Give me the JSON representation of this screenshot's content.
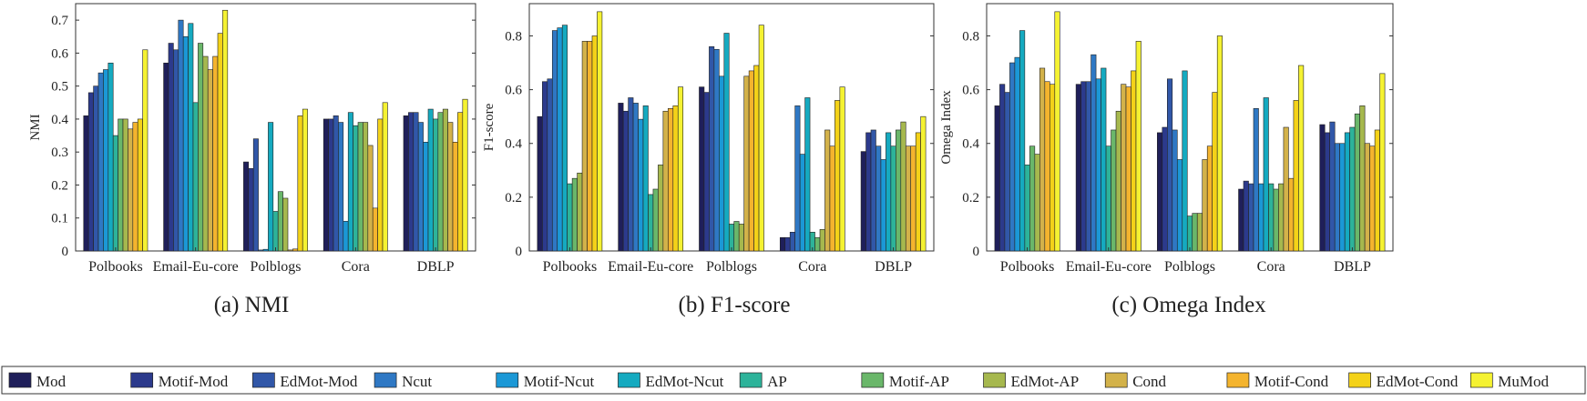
{
  "series": [
    {
      "name": "Mod",
      "color": "#1f1f5a"
    },
    {
      "name": "Motif-Mod",
      "color": "#2c3a8c"
    },
    {
      "name": "EdMot-Mod",
      "color": "#3157a8"
    },
    {
      "name": "Ncut",
      "color": "#2f78c4"
    },
    {
      "name": "Motif-Ncut",
      "color": "#1b98d6"
    },
    {
      "name": "EdMot-Ncut",
      "color": "#15aac0"
    },
    {
      "name": "AP",
      "color": "#2db39a"
    },
    {
      "name": "Motif-AP",
      "color": "#6ab76a"
    },
    {
      "name": "EdMot-AP",
      "color": "#a6b84e"
    },
    {
      "name": "Cond",
      "color": "#d3b24a"
    },
    {
      "name": "Motif-Cond",
      "color": "#f4b42e"
    },
    {
      "name": "EdMot-Cond",
      "color": "#f4d218"
    },
    {
      "name": "MuMod",
      "color": "#f5f232"
    }
  ],
  "chart_data": [
    {
      "type": "bar",
      "title": "(a) NMI",
      "ylabel": "NMI",
      "xlabel": "",
      "ylim": [
        0,
        0.75
      ],
      "yticks": [
        0,
        0.1,
        0.2,
        0.3,
        0.4,
        0.5,
        0.6,
        0.7
      ],
      "ytick_labels": [
        "0",
        "0.1",
        "0.2",
        "0.3",
        "0.4",
        "0.5",
        "0.6",
        "0.7"
      ],
      "categories": [
        "Polbooks",
        "Email-Eu-core",
        "Polblogs",
        "Cora",
        "DBLP"
      ],
      "values": [
        [
          0.41,
          0.48,
          0.5,
          0.54,
          0.55,
          0.57,
          0.35,
          0.4,
          0.4,
          0.37,
          0.39,
          0.4,
          0.61
        ],
        [
          0.57,
          0.63,
          0.61,
          0.7,
          0.65,
          0.69,
          0.45,
          0.63,
          0.59,
          0.55,
          0.59,
          0.66,
          0.73
        ],
        [
          0.27,
          0.25,
          0.34,
          0.003,
          0.005,
          0.39,
          0.12,
          0.18,
          0.16,
          0.003,
          0.006,
          0.41,
          0.43
        ],
        [
          0.4,
          0.4,
          0.41,
          0.39,
          0.09,
          0.42,
          0.38,
          0.39,
          0.39,
          0.32,
          0.13,
          0.4,
          0.45
        ],
        [
          0.41,
          0.42,
          0.42,
          0.39,
          0.33,
          0.43,
          0.4,
          0.42,
          0.43,
          0.39,
          0.33,
          0.42,
          0.46
        ]
      ]
    },
    {
      "type": "bar",
      "title": "(b) F1-score",
      "ylabel": "F1-score",
      "xlabel": "",
      "ylim": [
        0,
        0.92
      ],
      "yticks": [
        0,
        0.2,
        0.4,
        0.6,
        0.8
      ],
      "ytick_labels": [
        "0",
        "0.2",
        "0.4",
        "0.6",
        "0.8"
      ],
      "categories": [
        "Polbooks",
        "Email-Eu-core",
        "Polblogs",
        "Cora",
        "DBLP"
      ],
      "values": [
        [
          0.5,
          0.63,
          0.64,
          0.82,
          0.83,
          0.84,
          0.25,
          0.27,
          0.29,
          0.78,
          0.78,
          0.8,
          0.89
        ],
        [
          0.55,
          0.52,
          0.57,
          0.55,
          0.49,
          0.54,
          0.21,
          0.23,
          0.32,
          0.52,
          0.53,
          0.54,
          0.61
        ],
        [
          0.61,
          0.59,
          0.76,
          0.75,
          0.65,
          0.81,
          0.1,
          0.11,
          0.1,
          0.65,
          0.67,
          0.69,
          0.84
        ],
        [
          0.05,
          0.05,
          0.07,
          0.54,
          0.36,
          0.57,
          0.07,
          0.05,
          0.08,
          0.45,
          0.39,
          0.56,
          0.61
        ],
        [
          0.37,
          0.44,
          0.45,
          0.39,
          0.34,
          0.44,
          0.39,
          0.45,
          0.48,
          0.39,
          0.39,
          0.44,
          0.5
        ]
      ]
    },
    {
      "type": "bar",
      "title": "(c) Omega Index",
      "ylabel": "Omega Index",
      "xlabel": "",
      "ylim": [
        0,
        0.92
      ],
      "yticks": [
        0,
        0.2,
        0.4,
        0.6,
        0.8
      ],
      "ytick_labels": [
        "0",
        "0.2",
        "0.4",
        "0.6",
        "0.8"
      ],
      "categories": [
        "Polbooks",
        "Email-Eu-core",
        "Polblogs",
        "Cora",
        "DBLP"
      ],
      "values": [
        [
          0.54,
          0.62,
          0.59,
          0.7,
          0.72,
          0.82,
          0.32,
          0.39,
          0.36,
          0.68,
          0.63,
          0.62,
          0.89
        ],
        [
          0.62,
          0.63,
          0.63,
          0.73,
          0.64,
          0.68,
          0.39,
          0.45,
          0.52,
          0.62,
          0.61,
          0.67,
          0.78
        ],
        [
          0.44,
          0.46,
          0.64,
          0.45,
          0.34,
          0.67,
          0.13,
          0.14,
          0.14,
          0.34,
          0.39,
          0.59,
          0.8
        ],
        [
          0.23,
          0.26,
          0.25,
          0.53,
          0.25,
          0.57,
          0.25,
          0.23,
          0.25,
          0.46,
          0.27,
          0.56,
          0.69
        ],
        [
          0.47,
          0.44,
          0.48,
          0.4,
          0.4,
          0.44,
          0.46,
          0.51,
          0.54,
          0.4,
          0.39,
          0.45,
          0.66
        ]
      ]
    }
  ]
}
